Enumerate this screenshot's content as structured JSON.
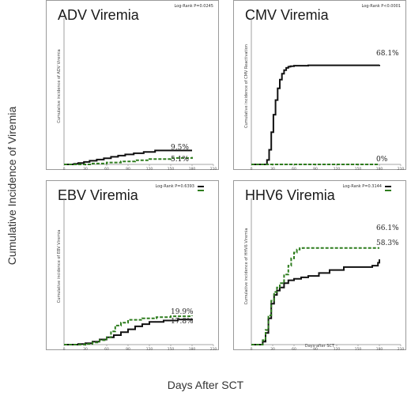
{
  "figure": {
    "ylabel": "Cumulative Incidence of Viremia",
    "xlabel": "Days After SCT"
  },
  "colors": {
    "line1": "#111111",
    "line2": "#2e7d1e"
  },
  "chart_data": [
    {
      "type": "line",
      "title": "ADV Viremia",
      "stat": "Log-Rank P=0.0245",
      "ylabel": "Cumulative incidence of ADV Viremia",
      "xlabel": "",
      "xticks": [
        0,
        30,
        60,
        90,
        120,
        150,
        180,
        210
      ],
      "xlim": [
        0,
        210
      ],
      "ylim": [
        0,
        1
      ],
      "legend": null,
      "end_labels": [
        "9.5%",
        "5.1%"
      ],
      "series": [
        {
          "style": "solid",
          "color": "#111111",
          "x": [
            0,
            14,
            20,
            28,
            36,
            46,
            56,
            66,
            76,
            86,
            98,
            112,
            128,
            180
          ],
          "y": [
            0,
            0.004,
            0.01,
            0.017,
            0.025,
            0.033,
            0.042,
            0.052,
            0.06,
            0.068,
            0.076,
            0.085,
            0.095,
            0.095
          ]
        },
        {
          "style": "dashed",
          "color": "#2e7d1e",
          "x": [
            0,
            40,
            60,
            80,
            100,
            120,
            150,
            180
          ],
          "y": [
            0,
            0.006,
            0.013,
            0.02,
            0.028,
            0.036,
            0.044,
            0.051
          ]
        }
      ]
    },
    {
      "type": "line",
      "title": "CMV Viremia",
      "stat": "Log-Rank P<0.0001",
      "ylabel": "Cumulative incidence of CMV Reactivation",
      "xlabel": "",
      "xticks": [
        0,
        30,
        60,
        90,
        120,
        150,
        180,
        210
      ],
      "xlim": [
        0,
        210
      ],
      "ylim": [
        0,
        1
      ],
      "legend": null,
      "end_labels": [
        "68.1%",
        "0%"
      ],
      "series": [
        {
          "style": "solid",
          "color": "#111111",
          "x": [
            0,
            20,
            22,
            25,
            28,
            31,
            34,
            37,
            40,
            43,
            46,
            49,
            52,
            55,
            60,
            80,
            180
          ],
          "y": [
            0,
            0,
            0.03,
            0.1,
            0.22,
            0.34,
            0.44,
            0.52,
            0.58,
            0.62,
            0.645,
            0.66,
            0.668,
            0.672,
            0.675,
            0.678,
            0.681
          ]
        },
        {
          "style": "dashed",
          "color": "#2e7d1e",
          "x": [
            0,
            180
          ],
          "y": [
            0,
            0
          ]
        }
      ]
    },
    {
      "type": "line",
      "title": "EBV Viremia",
      "stat": "Log-Rank P=0.6393",
      "ylabel": "Cumulative incidence of EBV Viremia",
      "xlabel": "",
      "xticks": [
        0,
        30,
        60,
        90,
        120,
        150,
        180,
        210
      ],
      "xlim": [
        0,
        210
      ],
      "ylim": [
        0,
        1
      ],
      "legend": null,
      "end_labels": [
        "19.9%",
        "17.8%"
      ],
      "series": [
        {
          "style": "solid",
          "color": "#111111",
          "x": [
            0,
            20,
            30,
            40,
            50,
            60,
            70,
            80,
            90,
            100,
            110,
            120,
            140,
            160,
            180
          ],
          "y": [
            0,
            0.004,
            0.01,
            0.02,
            0.035,
            0.05,
            0.065,
            0.085,
            0.105,
            0.125,
            0.14,
            0.155,
            0.165,
            0.172,
            0.178
          ]
        },
        {
          "style": "dashed",
          "color": "#2e7d1e",
          "x": [
            0,
            30,
            40,
            50,
            60,
            66,
            72,
            80,
            90,
            110,
            130,
            150,
            180
          ],
          "y": [
            0,
            0.005,
            0.015,
            0.03,
            0.05,
            0.09,
            0.13,
            0.15,
            0.17,
            0.18,
            0.188,
            0.194,
            0.199
          ]
        }
      ]
    },
    {
      "type": "line",
      "title": "HHV6 Viremia",
      "stat": "Log-Rank P=0.3144",
      "ylabel": "Cumulative incidence of HHV6 Viremia",
      "xlabel": "Days after SCT",
      "xticks": [
        0,
        30,
        60,
        90,
        120,
        150,
        180,
        210
      ],
      "xlim": [
        0,
        210
      ],
      "ylim": [
        0,
        1
      ],
      "legend": null,
      "end_labels": [
        "66.1%",
        "58.3%"
      ],
      "series": [
        {
          "style": "solid",
          "color": "#111111",
          "x": [
            0,
            12,
            16,
            20,
            24,
            28,
            32,
            36,
            40,
            46,
            52,
            60,
            70,
            80,
            95,
            110,
            130,
            150,
            170,
            178,
            180
          ],
          "y": [
            0,
            0,
            0.02,
            0.08,
            0.18,
            0.28,
            0.34,
            0.37,
            0.39,
            0.42,
            0.44,
            0.45,
            0.46,
            0.47,
            0.49,
            0.51,
            0.53,
            0.53,
            0.54,
            0.56,
            0.583
          ]
        },
        {
          "style": "dashed",
          "color": "#2e7d1e",
          "x": [
            0,
            12,
            16,
            20,
            24,
            28,
            32,
            36,
            40,
            46,
            52,
            56,
            60,
            64,
            68,
            72,
            180
          ],
          "y": [
            0,
            0,
            0.03,
            0.1,
            0.2,
            0.3,
            0.36,
            0.39,
            0.42,
            0.48,
            0.54,
            0.59,
            0.63,
            0.65,
            0.66,
            0.661,
            0.661
          ]
        }
      ]
    }
  ]
}
